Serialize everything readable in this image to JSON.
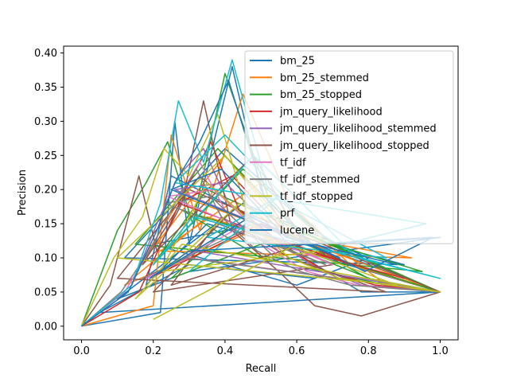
{
  "chart_data": {
    "type": "line",
    "title": "",
    "xlabel": "Recall",
    "ylabel": "Precision",
    "xlim": [
      -0.05,
      1.05
    ],
    "ylim": [
      -0.02,
      0.41
    ],
    "xticks": [
      0.0,
      0.2,
      0.4,
      0.6,
      0.8,
      1.0
    ],
    "xtick_labels": [
      "0.0",
      "0.2",
      "0.4",
      "0.6",
      "0.8",
      "1.0"
    ],
    "yticks": [
      0.0,
      0.05,
      0.1,
      0.15,
      0.2,
      0.25,
      0.3,
      0.35,
      0.4
    ],
    "ytick_labels": [
      "0.00",
      "0.05",
      "0.10",
      "0.15",
      "0.20",
      "0.25",
      "0.30",
      "0.35",
      "0.40"
    ],
    "grid": false,
    "legend_position": "top-right",
    "series": [
      {
        "name": "bm_25",
        "color": "#1f77b4",
        "x": [
          0.0,
          0.22,
          0.26,
          0.3,
          0.42,
          0.5,
          0.62,
          0.78,
          1.0,
          0.35,
          0.18,
          0.25,
          0.55,
          0.9,
          0.12,
          0.4,
          0.7,
          1.0,
          0.3,
          0.1,
          0.45,
          0.8,
          0.6,
          0.2,
          0.5,
          1.0,
          0.05,
          0.3,
          0.65
        ],
        "y": [
          0.0,
          0.02,
          0.3,
          0.12,
          0.38,
          0.2,
          0.1,
          0.05,
          0.05,
          0.15,
          0.06,
          0.22,
          0.14,
          0.09,
          0.1,
          0.26,
          0.12,
          0.13,
          0.08,
          0.04,
          0.18,
          0.1,
          0.06,
          0.12,
          0.15,
          0.05,
          0.02,
          0.09,
          0.07
        ]
      },
      {
        "name": "bm_25_stemmed",
        "color": "#ff7f0e",
        "x": [
          0.0,
          0.2,
          0.25,
          0.33,
          0.45,
          0.58,
          0.7,
          0.85,
          1.0,
          0.28,
          0.15,
          0.4,
          0.6,
          0.92,
          0.22,
          0.5,
          0.75,
          1.0,
          0.35,
          0.12,
          0.48,
          0.68
        ],
        "y": [
          0.0,
          0.03,
          0.28,
          0.14,
          0.34,
          0.18,
          0.12,
          0.06,
          0.05,
          0.19,
          0.08,
          0.25,
          0.13,
          0.1,
          0.11,
          0.21,
          0.09,
          0.05,
          0.16,
          0.06,
          0.14,
          0.08
        ]
      },
      {
        "name": "bm_25_stopped",
        "color": "#2ca02c",
        "x": [
          0.0,
          0.1,
          0.18,
          0.24,
          0.31,
          0.4,
          0.52,
          0.66,
          0.8,
          1.0,
          0.35,
          0.2,
          0.45,
          0.7,
          0.95,
          0.15,
          0.38,
          0.6,
          1.0,
          0.28,
          0.5,
          0.85,
          0.42,
          0.25,
          0.55
        ],
        "y": [
          0.0,
          0.14,
          0.21,
          0.27,
          0.15,
          0.37,
          0.19,
          0.11,
          0.07,
          0.05,
          0.2,
          0.09,
          0.23,
          0.12,
          0.08,
          0.12,
          0.26,
          0.14,
          0.05,
          0.17,
          0.1,
          0.06,
          0.15,
          0.07,
          0.13
        ]
      },
      {
        "name": "jm_query_likelihood",
        "color": "#d62728",
        "x": [
          0.0,
          0.16,
          0.23,
          0.29,
          0.36,
          0.44,
          0.56,
          0.68,
          0.82,
          1.0,
          0.3,
          0.19,
          0.5,
          0.75,
          0.27,
          0.42,
          0.62,
          0.9
        ],
        "y": [
          0.0,
          0.05,
          0.13,
          0.2,
          0.27,
          0.17,
          0.12,
          0.08,
          0.06,
          0.05,
          0.1,
          0.07,
          0.15,
          0.09,
          0.18,
          0.22,
          0.11,
          0.07
        ]
      },
      {
        "name": "jm_query_likelihood_stemmed",
        "color": "#9467bd",
        "x": [
          0.0,
          0.14,
          0.21,
          0.27,
          0.34,
          0.41,
          0.53,
          0.64,
          0.78,
          1.0,
          0.32,
          0.22,
          0.47,
          0.72,
          0.26,
          0.4,
          0.58
        ],
        "y": [
          0.0,
          0.06,
          0.15,
          0.22,
          0.26,
          0.18,
          0.13,
          0.09,
          0.06,
          0.05,
          0.11,
          0.08,
          0.16,
          0.1,
          0.2,
          0.21,
          0.12
        ]
      },
      {
        "name": "jm_query_likelihood_stopped",
        "color": "#8c564b",
        "x": [
          0.0,
          0.08,
          0.16,
          0.21,
          0.28,
          0.34,
          0.42,
          0.55,
          0.65,
          0.78,
          1.0,
          0.3,
          0.17,
          0.48,
          0.62,
          0.25,
          0.39,
          0.58,
          0.85,
          0.1,
          0.33,
          0.52,
          0.7,
          0.2,
          0.44
        ],
        "y": [
          0.0,
          0.06,
          0.22,
          0.11,
          0.18,
          0.33,
          0.14,
          0.08,
          0.03,
          0.015,
          0.05,
          0.2,
          0.09,
          0.25,
          0.12,
          0.06,
          0.16,
          0.1,
          0.05,
          0.07,
          0.22,
          0.13,
          0.09,
          0.05,
          0.18
        ]
      },
      {
        "name": "tf_idf",
        "color": "#e377c2",
        "x": [
          0.0,
          0.12,
          0.2,
          0.26,
          0.33,
          0.4,
          0.5,
          0.63,
          0.77,
          1.0,
          0.3,
          0.18,
          0.46,
          0.7,
          0.24,
          0.37,
          0.55
        ],
        "y": [
          0.0,
          0.05,
          0.12,
          0.18,
          0.24,
          0.17,
          0.12,
          0.08,
          0.06,
          0.05,
          0.1,
          0.07,
          0.15,
          0.09,
          0.19,
          0.2,
          0.11
        ]
      },
      {
        "name": "tf_idf_stemmed",
        "color": "#7f7f7f",
        "x": [
          0.0,
          0.11,
          0.19,
          0.25,
          0.32,
          0.39,
          0.49,
          0.61,
          0.75,
          1.0,
          0.29,
          0.17,
          0.45,
          0.68,
          0.23,
          0.36,
          0.54
        ],
        "y": [
          0.0,
          0.05,
          0.11,
          0.17,
          0.23,
          0.16,
          0.11,
          0.08,
          0.06,
          0.05,
          0.1,
          0.07,
          0.14,
          0.09,
          0.18,
          0.19,
          0.1
        ]
      },
      {
        "name": "tf_idf_stopped",
        "color": "#bcbd22",
        "x": [
          0.0,
          0.09,
          0.17,
          0.23,
          0.3,
          0.38,
          0.47,
          0.58,
          0.72,
          1.0,
          0.28,
          0.15,
          0.44,
          0.66,
          0.22,
          0.35,
          0.52,
          0.88,
          0.1,
          0.4,
          0.6,
          0.2
        ],
        "y": [
          0.0,
          0.1,
          0.16,
          0.26,
          0.22,
          0.31,
          0.15,
          0.1,
          0.07,
          0.05,
          0.12,
          0.04,
          0.18,
          0.11,
          0.08,
          0.21,
          0.13,
          0.06,
          0.1,
          0.25,
          0.12,
          0.01
        ]
      },
      {
        "name": "prf",
        "color": "#17becf",
        "x": [
          0.0,
          0.14,
          0.22,
          0.27,
          0.34,
          0.42,
          0.52,
          0.65,
          0.78,
          1.0,
          0.31,
          0.2,
          0.48,
          0.73,
          0.96,
          0.26,
          0.4,
          0.6,
          0.85,
          0.35,
          0.55,
          0.3
        ],
        "y": [
          0.0,
          0.06,
          0.18,
          0.33,
          0.24,
          0.39,
          0.2,
          0.14,
          0.1,
          0.07,
          0.16,
          0.09,
          0.25,
          0.12,
          0.15,
          0.21,
          0.28,
          0.17,
          0.1,
          0.13,
          0.19,
          0.08
        ]
      },
      {
        "name": "lucene",
        "color": "#1f77b4",
        "x": [
          0.0,
          0.13,
          0.21,
          0.26,
          0.33,
          0.41,
          0.51,
          0.64,
          0.79,
          0.98,
          0.3,
          0.19,
          0.47,
          0.72,
          0.25,
          0.39,
          0.57,
          0.88
        ],
        "y": [
          0.0,
          0.05,
          0.14,
          0.21,
          0.27,
          0.36,
          0.19,
          0.12,
          0.08,
          0.13,
          0.11,
          0.07,
          0.16,
          0.1,
          0.2,
          0.23,
          0.13,
          0.09
        ]
      }
    ]
  }
}
